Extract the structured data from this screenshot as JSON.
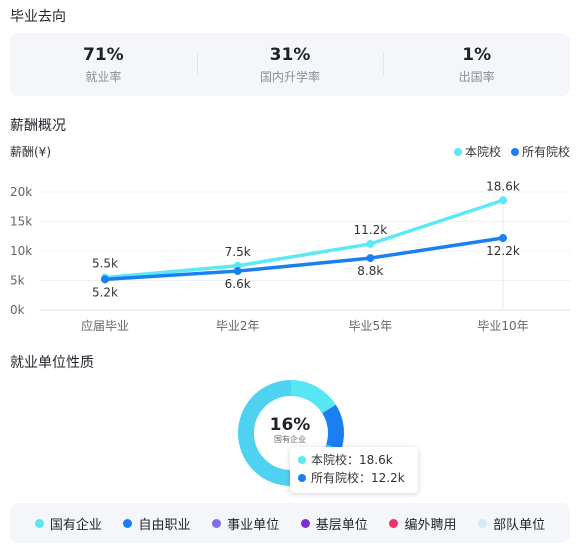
{
  "graduation": {
    "title": "毕业去向",
    "stats": [
      {
        "value": "71%",
        "label": "就业率"
      },
      {
        "value": "31%",
        "label": "国内升学率"
      },
      {
        "value": "1%",
        "label": "出国率"
      }
    ]
  },
  "salary": {
    "title": "薪酬概况",
    "ylabel": "薪酬(¥)",
    "legend": [
      {
        "name": "本院校",
        "color": "#5ce8f5"
      },
      {
        "name": "所有院校",
        "color": "#1a7ff0"
      }
    ]
  },
  "chart_data": {
    "type": "line",
    "categories": [
      "应届毕业",
      "毕业2年",
      "毕业5年",
      "毕业10年"
    ],
    "yticks": [
      "0k",
      "5k",
      "10k",
      "15k",
      "20k"
    ],
    "ylim": [
      0,
      20
    ],
    "series": [
      {
        "name": "本院校",
        "values": [
          5.5,
          7.5,
          11.2,
          18.6
        ],
        "labels": [
          "5.5k",
          "7.5k",
          "11.2k",
          "18.6k"
        ],
        "color": "#5ce8f5"
      },
      {
        "name": "所有院校",
        "values": [
          5.2,
          6.6,
          8.8,
          12.2
        ],
        "labels": [
          "5.2k",
          "6.6k",
          "8.8k",
          "12.2k"
        ],
        "color": "#1a7ff0"
      }
    ]
  },
  "tooltip": {
    "rows": [
      {
        "text": "本院校：18.6k",
        "color": "#5ce8f5"
      },
      {
        "text": "所有院校：12.2k",
        "color": "#1a7ff0"
      }
    ]
  },
  "employer": {
    "title": "就业单位性质",
    "center_value": "16%",
    "center_label": "国有企业",
    "donut": [
      {
        "name": "国有企业",
        "value": 16,
        "color": "#58e6f3"
      },
      {
        "name": "自由职业",
        "value": 14,
        "color": "#1a7ff0"
      },
      {
        "name": "rest",
        "value": 70,
        "color": "#4fd2f2"
      }
    ],
    "legend": [
      {
        "name": "国有企业",
        "color": "#58e6f3"
      },
      {
        "name": "自由职业",
        "color": "#1a7ff0"
      },
      {
        "name": "事业单位",
        "color": "#7f6df0"
      },
      {
        "name": "基层单位",
        "color": "#7a2fd0"
      },
      {
        "name": "编外聘用",
        "color": "#f0336d"
      },
      {
        "name": "部队单位",
        "color": "#d2e8fb"
      }
    ]
  }
}
